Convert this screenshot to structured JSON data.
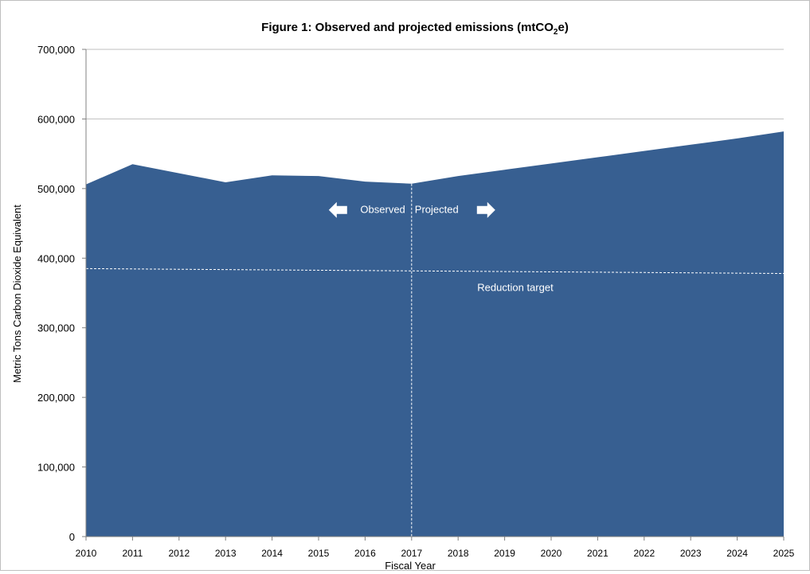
{
  "chart_data": {
    "type": "area",
    "title": {
      "prefix": "Figure 1: Observed and projected emissions (mtCO",
      "subscript": "2",
      "suffix": "e)"
    },
    "xlabel": "Fiscal Year",
    "ylabel": "Metric Tons Carbon Dioxide Equivalent",
    "x": [
      "2010",
      "2011",
      "2012",
      "2013",
      "2014",
      "2015",
      "2016",
      "2017",
      "2018",
      "2019",
      "2020",
      "2021",
      "2022",
      "2023",
      "2024",
      "2025"
    ],
    "series": [
      {
        "values": [
          506000,
          535000,
          522000,
          509000,
          519000,
          518000,
          510000,
          507000,
          518000,
          527000,
          536000,
          545000,
          554000,
          563000,
          572000,
          582000
        ]
      }
    ],
    "ylim": [
      0,
      700000
    ],
    "yticks": [
      0,
      100000,
      200000,
      300000,
      400000,
      500000,
      600000,
      700000
    ],
    "ytick_labels": [
      "0",
      "100,000",
      "200,000",
      "300,000",
      "400,000",
      "500,000",
      "600,000",
      "700,000"
    ],
    "grid": true,
    "reduction_target": {
      "label": "Reduction target",
      "start_value": 385000,
      "end_value": 378000
    },
    "divider": {
      "x": "2017",
      "left_label": "Observed",
      "right_label": "Projected"
    },
    "colors": {
      "fill": "#375F91",
      "grid": "#bfbfbf",
      "overlay": "#ffffff",
      "text": "#000000"
    }
  }
}
